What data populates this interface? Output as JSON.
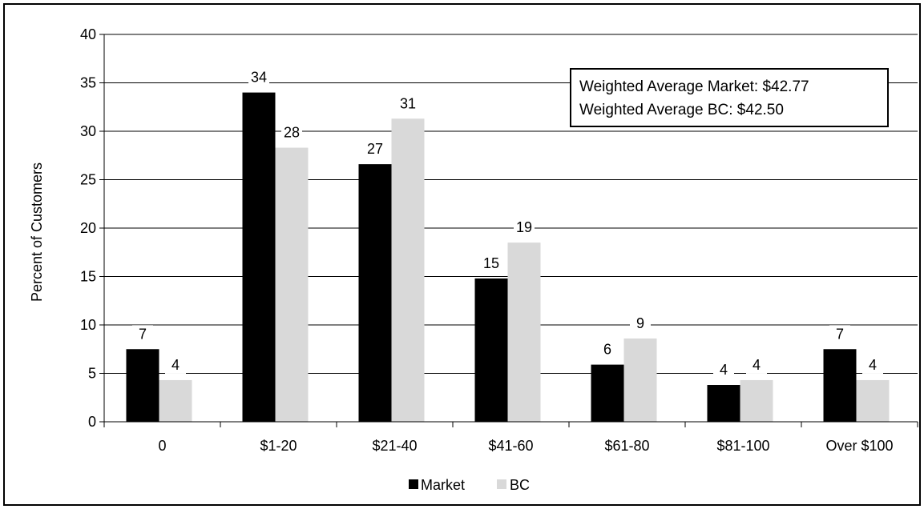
{
  "chart_data": {
    "type": "bar",
    "title": "",
    "xlabel": "",
    "ylabel": "Percent of Customers",
    "ylim": [
      0,
      40
    ],
    "yticks": [
      0,
      5,
      10,
      15,
      20,
      25,
      30,
      35,
      40
    ],
    "grid": true,
    "legend_position": "bottom",
    "categories": [
      "0",
      "$1-20",
      "$21-40",
      "$41-60",
      "$61-80",
      "$81-100",
      "Over $100"
    ],
    "series": [
      {
        "name": "Market",
        "color": "#000000",
        "values": [
          7.5,
          34,
          26.6,
          14.8,
          5.9,
          3.8,
          7.5
        ],
        "labels": [
          "7",
          "34",
          "27",
          "15",
          "6",
          "4",
          "7"
        ]
      },
      {
        "name": "BC",
        "color": "#d9d9d9",
        "values": [
          4.3,
          28.3,
          31.3,
          18.5,
          8.6,
          4.3,
          4.3
        ],
        "labels": [
          "4",
          "28",
          "31",
          "19",
          "9",
          "4",
          "4"
        ]
      }
    ],
    "annotation": {
      "lines": [
        "Weighted Average Market: $42.77",
        "Weighted Average BC: $42.50"
      ],
      "position": "top-right"
    }
  }
}
